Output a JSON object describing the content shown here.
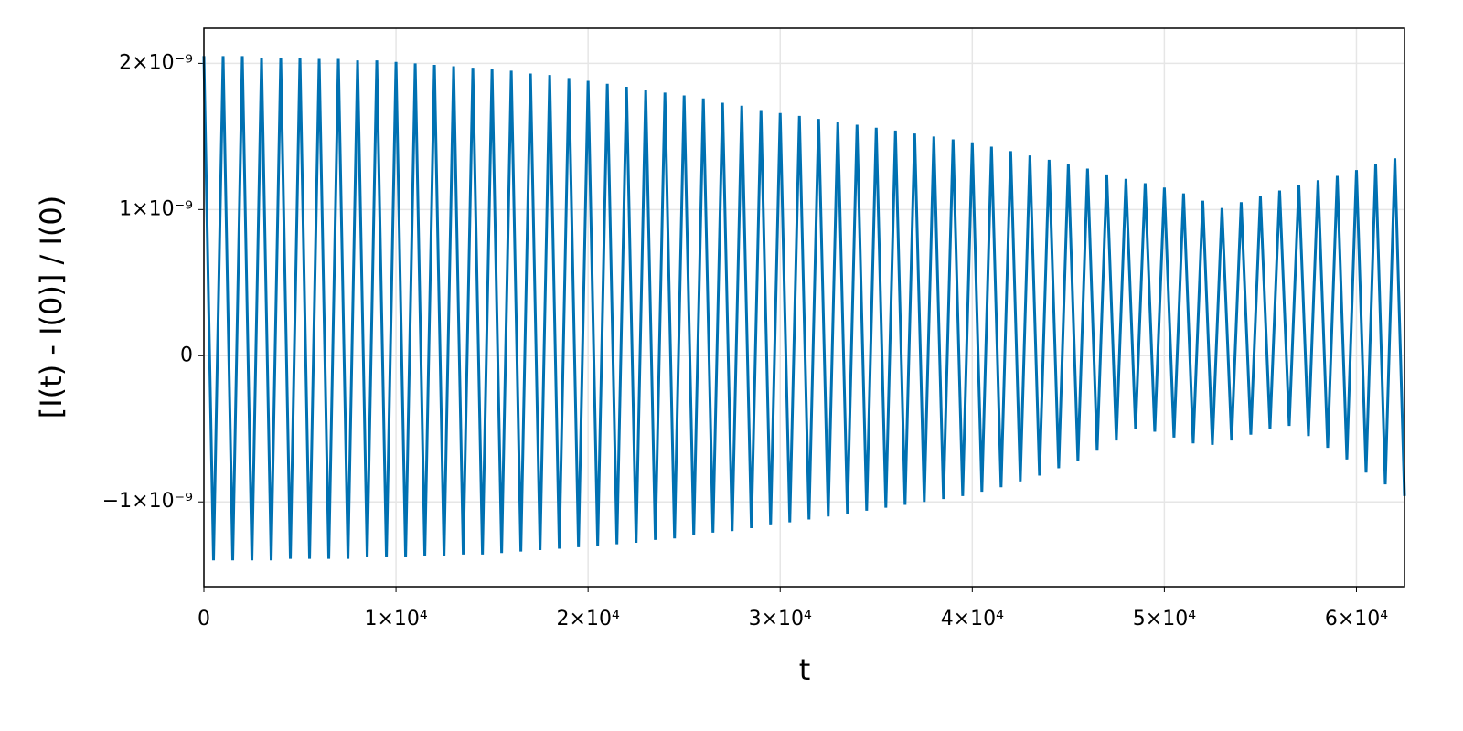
{
  "chart_data": {
    "type": "line",
    "xlabel": "t",
    "ylabel": "[I(t) - I(0)] / I(0)",
    "color": "#0071b2",
    "grid": true,
    "xlim": [
      0,
      62500
    ],
    "ylim": [
      -1.58e-09,
      2.24e-09
    ],
    "xticks": [
      0,
      {
        "value": 10000,
        "label": "1×10⁴"
      },
      {
        "value": 20000,
        "label": "2×10⁴"
      },
      {
        "value": 30000,
        "label": "3×10⁴"
      },
      {
        "value": 40000,
        "label": "4×10⁴"
      },
      {
        "value": 50000,
        "label": "5×10⁴"
      },
      {
        "value": 60000,
        "label": "6×10⁴"
      }
    ],
    "yticks": [
      {
        "value": -1e-09,
        "label": "−1×10⁻⁹"
      },
      0,
      {
        "value": 1e-09,
        "label": "1×10⁻⁹"
      },
      {
        "value": 2e-09,
        "label": "2×10⁻⁹"
      }
    ],
    "x": [
      0,
      500,
      1000,
      1500,
      2000,
      2500,
      3000,
      3500,
      4000,
      4500,
      5000,
      5500,
      6000,
      6500,
      7000,
      7500,
      8000,
      8500,
      9000,
      9500,
      10000,
      10500,
      11000,
      11500,
      12000,
      12500,
      13000,
      13500,
      14000,
      14500,
      15000,
      15500,
      16000,
      16500,
      17000,
      17500,
      18000,
      18500,
      19000,
      19500,
      20000,
      20500,
      21000,
      21500,
      22000,
      22500,
      23000,
      23500,
      24000,
      24500,
      25000,
      25500,
      26000,
      26500,
      27000,
      27500,
      28000,
      28500,
      29000,
      29500,
      30000,
      30500,
      31000,
      31500,
      32000,
      32500,
      33000,
      33500,
      34000,
      34500,
      35000,
      35500,
      36000,
      36500,
      37000,
      37500,
      38000,
      38500,
      39000,
      39500,
      40000,
      40500,
      41000,
      41500,
      42000,
      42500,
      43000,
      43500,
      44000,
      44500,
      45000,
      45500,
      46000,
      46500,
      47000,
      47500,
      48000,
      48500,
      49000,
      49500,
      50000,
      50500,
      51000,
      51500,
      52000,
      52500,
      53000,
      53500,
      54000,
      54500,
      55000,
      55500,
      56000,
      56500,
      57000,
      57500,
      58000,
      58500,
      59000,
      59500,
      60000,
      60500,
      61000,
      61500,
      62000,
      62500
    ],
    "values": [
      2.05e-09,
      -1.4e-09,
      2.05e-09,
      -1.4e-09,
      2.05e-09,
      -1.4e-09,
      2.04e-09,
      -1.4e-09,
      2.04e-09,
      -1.39e-09,
      2.04e-09,
      -1.39e-09,
      2.03e-09,
      -1.39e-09,
      2.03e-09,
      -1.39e-09,
      2.02e-09,
      -1.38e-09,
      2.02e-09,
      -1.38e-09,
      2.01e-09,
      -1.38e-09,
      2e-09,
      -1.37e-09,
      1.99e-09,
      -1.37e-09,
      1.98e-09,
      -1.36e-09,
      1.97e-09,
      -1.36e-09,
      1.96e-09,
      -1.35e-09,
      1.95e-09,
      -1.34e-09,
      1.93e-09,
      -1.33e-09,
      1.92e-09,
      -1.32e-09,
      1.9e-09,
      -1.31e-09,
      1.88e-09,
      -1.3e-09,
      1.86e-09,
      -1.29e-09,
      1.84e-09,
      -1.28e-09,
      1.82e-09,
      -1.26e-09,
      1.8e-09,
      -1.25e-09,
      1.78e-09,
      -1.23e-09,
      1.76e-09,
      -1.21e-09,
      1.73e-09,
      -1.2e-09,
      1.71e-09,
      -1.18e-09,
      1.68e-09,
      -1.16e-09,
      1.66e-09,
      -1.14e-09,
      1.64e-09,
      -1.12e-09,
      1.62e-09,
      -1.1e-09,
      1.6e-09,
      -1.08e-09,
      1.58e-09,
      -1.06e-09,
      1.56e-09,
      -1.04e-09,
      1.54e-09,
      -1.02e-09,
      1.52e-09,
      -1e-09,
      1.5e-09,
      -9.8e-10,
      1.48e-09,
      -9.6e-10,
      1.46e-09,
      -9.3e-10,
      1.43e-09,
      -9e-10,
      1.4e-09,
      -8.6e-10,
      1.37e-09,
      -8.2e-10,
      1.34e-09,
      -7.7e-10,
      1.31e-09,
      -7.2e-10,
      1.28e-09,
      -6.5e-10,
      1.24e-09,
      -5.8e-10,
      1.21e-09,
      -5e-10,
      1.18e-09,
      -5.2e-10,
      1.15e-09,
      -5.6e-10,
      1.11e-09,
      -6e-10,
      1.06e-09,
      -6.1e-10,
      1.01e-09,
      -5.8e-10,
      1.05e-09,
      -5.4e-10,
      1.09e-09,
      -5e-10,
      1.13e-09,
      -4.8e-10,
      1.17e-09,
      -5.5e-10,
      1.2e-09,
      -6.3e-10,
      1.23e-09,
      -7.1e-10,
      1.27e-09,
      -8e-10,
      1.31e-09,
      -8.8e-10,
      1.35e-09,
      -9.6e-10
    ]
  }
}
